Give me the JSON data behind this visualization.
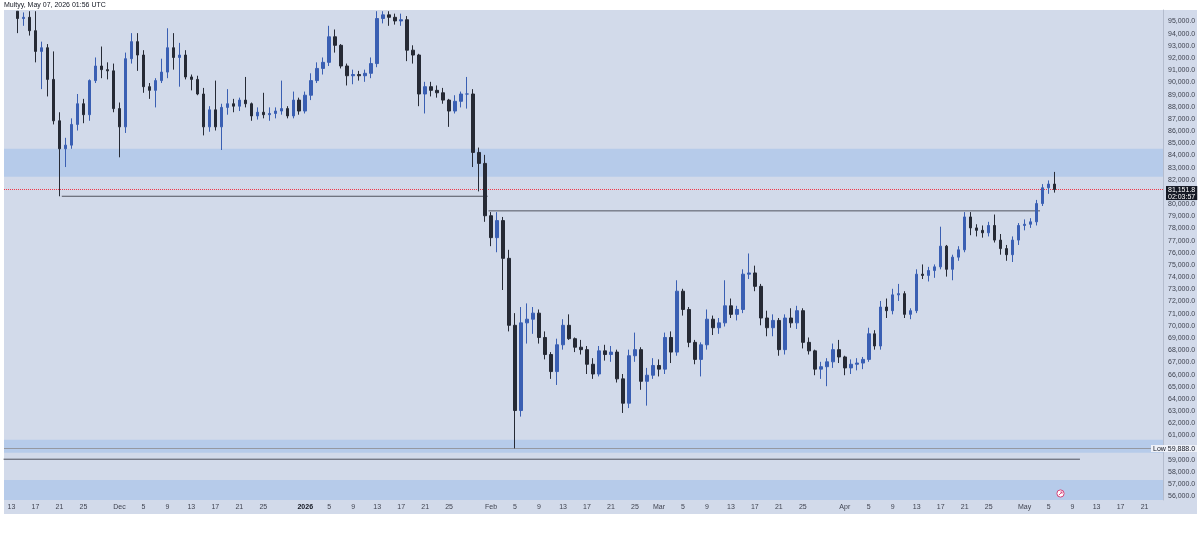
{
  "chart_data": {
    "type": "candlestick",
    "annotations": [
      "Multyy, May 07, 2026 01:56 UTC",
      "02:03:57"
    ],
    "x": [
      "2025-11-14",
      "2025-11-15",
      "2025-11-16",
      "2025-11-17",
      "2025-11-18",
      "2025-11-19",
      "2025-11-20",
      "2025-11-21",
      "2025-11-22",
      "2025-11-23",
      "2025-11-24",
      "2025-11-25",
      "2025-11-26",
      "2025-11-27",
      "2025-11-28",
      "2025-11-29",
      "2025-11-30",
      "2025-12-01",
      "2025-12-02",
      "2025-12-03",
      "2025-12-04",
      "2025-12-05",
      "2025-12-06",
      "2025-12-07",
      "2025-12-08",
      "2025-12-09",
      "2025-12-10",
      "2025-12-11",
      "2025-12-12",
      "2025-12-13",
      "2025-12-14",
      "2025-12-15",
      "2025-12-16",
      "2025-12-17",
      "2025-12-18",
      "2025-12-19",
      "2025-12-20",
      "2025-12-21",
      "2025-12-22",
      "2025-12-23",
      "2025-12-24",
      "2025-12-25",
      "2025-12-26",
      "2025-12-27",
      "2025-12-28",
      "2025-12-29",
      "2025-12-30",
      "2025-12-31",
      "2026-01-01",
      "2026-01-02",
      "2026-01-03",
      "2026-01-04",
      "2026-01-05",
      "2026-01-06",
      "2026-01-07",
      "2026-01-08",
      "2026-01-09",
      "2026-01-10",
      "2026-01-11",
      "2026-01-12",
      "2026-01-13",
      "2026-01-14",
      "2026-01-15",
      "2026-01-16",
      "2026-01-17",
      "2026-01-18",
      "2026-01-19",
      "2026-01-20",
      "2026-01-21",
      "2026-01-22",
      "2026-01-23",
      "2026-01-24",
      "2026-01-25",
      "2026-01-26",
      "2026-01-27",
      "2026-01-28",
      "2026-01-29",
      "2026-01-30",
      "2026-01-31",
      "2026-02-01",
      "2026-02-02",
      "2026-02-03",
      "2026-02-04",
      "2026-02-05",
      "2026-02-06",
      "2026-02-07",
      "2026-02-08",
      "2026-02-09",
      "2026-02-10",
      "2026-02-11",
      "2026-02-12",
      "2026-02-13",
      "2026-02-14",
      "2026-02-15",
      "2026-02-16",
      "2026-02-17",
      "2026-02-18",
      "2026-02-19",
      "2026-02-20",
      "2026-02-21",
      "2026-02-22",
      "2026-02-23",
      "2026-02-24",
      "2026-02-25",
      "2026-02-26",
      "2026-02-27",
      "2026-02-28",
      "2026-03-01",
      "2026-03-02",
      "2026-03-03",
      "2026-03-04",
      "2026-03-05",
      "2026-03-06",
      "2026-03-07",
      "2026-03-08",
      "2026-03-09",
      "2026-03-10",
      "2026-03-11",
      "2026-03-12",
      "2026-03-13",
      "2026-03-14",
      "2026-03-15",
      "2026-03-16",
      "2026-03-17",
      "2026-03-18",
      "2026-03-19",
      "2026-03-20",
      "2026-03-21",
      "2026-03-22",
      "2026-03-23",
      "2026-03-24",
      "2026-03-25",
      "2026-03-26",
      "2026-03-27",
      "2026-03-28",
      "2026-03-29",
      "2026-03-30",
      "2026-03-31",
      "2026-04-01",
      "2026-04-02",
      "2026-04-03",
      "2026-04-04",
      "2026-04-05",
      "2026-04-06",
      "2026-04-07",
      "2026-04-08",
      "2026-04-09",
      "2026-04-10",
      "2026-04-11",
      "2026-04-12",
      "2026-04-13",
      "2026-04-14",
      "2026-04-15",
      "2026-04-16",
      "2026-04-17",
      "2026-04-18",
      "2026-04-19",
      "2026-04-20",
      "2026-04-21",
      "2026-04-22",
      "2026-04-23",
      "2026-04-24",
      "2026-04-25",
      "2026-04-26",
      "2026-04-27",
      "2026-04-28",
      "2026-04-29",
      "2026-04-30",
      "2026-05-01",
      "2026-05-02",
      "2026-05-03",
      "2026-05-04",
      "2026-05-05",
      "2026-05-06"
    ],
    "ohlc": [
      [
        95800,
        95800,
        94000,
        95200
      ],
      [
        95200,
        95700,
        94600,
        95300
      ],
      [
        95300,
        95800,
        93800,
        94200
      ],
      [
        94200,
        95800,
        91600,
        92500
      ],
      [
        92500,
        93300,
        89400,
        92800
      ],
      [
        92800,
        93100,
        88800,
        90200
      ],
      [
        90200,
        92500,
        86500,
        86800
      ],
      [
        86800,
        87500,
        80600,
        84500
      ],
      [
        84500,
        85400,
        83000,
        84800
      ],
      [
        84800,
        87000,
        84500,
        86500
      ],
      [
        86500,
        89000,
        86000,
        88200
      ],
      [
        88200,
        88600,
        86600,
        87300
      ],
      [
        87300,
        90200,
        86800,
        90100
      ],
      [
        90100,
        92000,
        89900,
        91300
      ],
      [
        91300,
        92900,
        90300,
        91000
      ],
      [
        91000,
        91600,
        90200,
        90900
      ],
      [
        90900,
        91500,
        87500,
        87800
      ],
      [
        87800,
        88300,
        83800,
        86300
      ],
      [
        86300,
        92400,
        85800,
        91900
      ],
      [
        91900,
        94000,
        91500,
        93300
      ],
      [
        93300,
        94000,
        90900,
        92200
      ],
      [
        92200,
        92600,
        89100,
        89600
      ],
      [
        89600,
        89900,
        88600,
        89300
      ],
      [
        89300,
        90300,
        87900,
        90100
      ],
      [
        90100,
        91900,
        89900,
        90800
      ],
      [
        90800,
        94400,
        90300,
        92800
      ],
      [
        92800,
        94000,
        91000,
        92000
      ],
      [
        92000,
        93200,
        89600,
        92200
      ],
      [
        92200,
        92600,
        90200,
        90400
      ],
      [
        90400,
        90600,
        89300,
        90200
      ],
      [
        90200,
        90500,
        88900,
        89000
      ],
      [
        89000,
        89500,
        85600,
        86300
      ],
      [
        86300,
        88000,
        85900,
        87700
      ],
      [
        87700,
        90100,
        86000,
        86300
      ],
      [
        86300,
        88200,
        84400,
        87900
      ],
      [
        87900,
        89400,
        87300,
        88200
      ],
      [
        88200,
        88600,
        87500,
        88000
      ],
      [
        88000,
        88700,
        87600,
        88500
      ],
      [
        88500,
        90400,
        87900,
        88200
      ],
      [
        88200,
        88300,
        86800,
        87200
      ],
      [
        87200,
        87900,
        86900,
        87500
      ],
      [
        87500,
        89100,
        87000,
        87300
      ],
      [
        87300,
        87900,
        86800,
        87400
      ],
      [
        87400,
        87900,
        87000,
        87600
      ],
      [
        87600,
        90100,
        87300,
        87800
      ],
      [
        87800,
        88000,
        87000,
        87200
      ],
      [
        87200,
        89200,
        87000,
        88500
      ],
      [
        88500,
        88700,
        87300,
        87600
      ],
      [
        87600,
        89200,
        87400,
        88900
      ],
      [
        88900,
        90700,
        88500,
        90100
      ],
      [
        90100,
        91600,
        89900,
        91100
      ],
      [
        91100,
        92000,
        90600,
        91600
      ],
      [
        91600,
        94600,
        91300,
        93700
      ],
      [
        93700,
        94300,
        92400,
        93000
      ],
      [
        93000,
        93100,
        91100,
        91300
      ],
      [
        91300,
        91500,
        89700,
        90500
      ],
      [
        90500,
        91000,
        89800,
        90600
      ],
      [
        90600,
        90900,
        90100,
        90500
      ],
      [
        90500,
        91000,
        90000,
        90700
      ],
      [
        90700,
        92000,
        90300,
        91500
      ],
      [
        91500,
        95800,
        91200,
        95200
      ],
      [
        95200,
        95800,
        94800,
        95500
      ],
      [
        95500,
        95800,
        94600,
        95300
      ],
      [
        95300,
        95600,
        94700,
        95000
      ],
      [
        95000,
        95600,
        94600,
        95100
      ],
      [
        95100,
        95400,
        91700,
        92600
      ],
      [
        92600,
        93000,
        91500,
        92200
      ],
      [
        92200,
        92300,
        88000,
        89000
      ],
      [
        89000,
        90000,
        87400,
        89600
      ],
      [
        89600,
        90000,
        88800,
        89300
      ],
      [
        89300,
        89700,
        88700,
        89100
      ],
      [
        89100,
        89500,
        88200,
        88500
      ],
      [
        88500,
        88600,
        86300,
        87600
      ],
      [
        87600,
        88900,
        87400,
        88400
      ],
      [
        88400,
        89200,
        87900,
        89000
      ],
      [
        89000,
        90400,
        87800,
        89000
      ],
      [
        89000,
        89400,
        83000,
        84200
      ],
      [
        84200,
        84600,
        81000,
        83300
      ],
      [
        83300,
        84000,
        78500,
        79000
      ],
      [
        79000,
        79300,
        76500,
        77200
      ],
      [
        77200,
        79300,
        76000,
        78600
      ],
      [
        78600,
        78900,
        72900,
        75500
      ],
      [
        75500,
        76200,
        69500,
        70000
      ],
      [
        70000,
        71000,
        59888,
        63000
      ],
      [
        63000,
        71500,
        62500,
        70200
      ],
      [
        70200,
        71800,
        68500,
        70500
      ],
      [
        70500,
        71500,
        69300,
        71000
      ],
      [
        71000,
        71300,
        68500,
        69000
      ],
      [
        69000,
        69500,
        67200,
        67600
      ],
      [
        67600,
        67800,
        65600,
        66200
      ],
      [
        66200,
        68900,
        65100,
        68400
      ],
      [
        68400,
        70500,
        68000,
        70000
      ],
      [
        70000,
        70900,
        68800,
        68900
      ],
      [
        68900,
        69000,
        67800,
        68200
      ],
      [
        68200,
        68800,
        67600,
        68000
      ],
      [
        68000,
        68300,
        66000,
        66800
      ],
      [
        66800,
        67300,
        65600,
        66000
      ],
      [
        66000,
        68300,
        65800,
        67900
      ],
      [
        67900,
        68400,
        67100,
        67600
      ],
      [
        67600,
        68300,
        67000,
        67800
      ],
      [
        67800,
        68000,
        65300,
        65600
      ],
      [
        65600,
        66000,
        62800,
        63600
      ],
      [
        63600,
        68000,
        63200,
        67500
      ],
      [
        67500,
        69400,
        67000,
        68000
      ],
      [
        68000,
        68200,
        64700,
        65400
      ],
      [
        65400,
        66500,
        63400,
        65900
      ],
      [
        65900,
        67300,
        65600,
        66700
      ],
      [
        66700,
        67200,
        65800,
        66400
      ],
      [
        66400,
        69400,
        66000,
        69000
      ],
      [
        69000,
        69500,
        66900,
        67800
      ],
      [
        67800,
        73700,
        67500,
        72800
      ],
      [
        72800,
        73000,
        70800,
        71300
      ],
      [
        71300,
        71500,
        68200,
        68600
      ],
      [
        68600,
        68800,
        66800,
        67200
      ],
      [
        67200,
        68600,
        65800,
        68400
      ],
      [
        68400,
        71300,
        68000,
        70500
      ],
      [
        70500,
        70800,
        69200,
        69800
      ],
      [
        69800,
        70600,
        69300,
        70200
      ],
      [
        70200,
        73700,
        69900,
        71600
      ],
      [
        71600,
        72200,
        70600,
        70900
      ],
      [
        70900,
        71600,
        70400,
        71300
      ],
      [
        71300,
        74600,
        71000,
        74200
      ],
      [
        74200,
        75900,
        73800,
        74300
      ],
      [
        74300,
        74900,
        72800,
        73200
      ],
      [
        73200,
        73400,
        70000,
        70600
      ],
      [
        70600,
        71200,
        69100,
        69800
      ],
      [
        69800,
        70900,
        69100,
        70400
      ],
      [
        70400,
        70600,
        67500,
        68000
      ],
      [
        68000,
        70900,
        67600,
        70600
      ],
      [
        70600,
        71400,
        69800,
        70200
      ],
      [
        70200,
        71600,
        69700,
        71200
      ],
      [
        71200,
        71400,
        68100,
        68600
      ],
      [
        68600,
        69000,
        67600,
        67900
      ],
      [
        67900,
        68000,
        65900,
        66400
      ],
      [
        66400,
        67000,
        65600,
        66600
      ],
      [
        66600,
        67300,
        65000,
        67000
      ],
      [
        67000,
        68500,
        66500,
        68000
      ],
      [
        68000,
        68800,
        66900,
        67400
      ],
      [
        67400,
        67500,
        65900,
        66500
      ],
      [
        66500,
        67200,
        66000,
        66800
      ],
      [
        66800,
        67300,
        66300,
        66900
      ],
      [
        66900,
        67400,
        66400,
        67200
      ],
      [
        67200,
        69800,
        67000,
        69300
      ],
      [
        69300,
        69600,
        68000,
        68300
      ],
      [
        68300,
        72000,
        68000,
        71500
      ],
      [
        71500,
        72200,
        70600,
        71200
      ],
      [
        71200,
        73000,
        70900,
        72500
      ],
      [
        72500,
        73400,
        72000,
        72600
      ],
      [
        72600,
        72800,
        70600,
        70900
      ],
      [
        70900,
        71400,
        70500,
        71200
      ],
      [
        71200,
        74600,
        71000,
        74200
      ],
      [
        74200,
        75000,
        73800,
        74100
      ],
      [
        74100,
        74800,
        73600,
        74500
      ],
      [
        74500,
        75000,
        73900,
        74800
      ],
      [
        74800,
        78100,
        74600,
        76500
      ],
      [
        76500,
        76600,
        74000,
        74600
      ],
      [
        74600,
        75800,
        73700,
        75600
      ],
      [
        75600,
        76500,
        75300,
        76200
      ],
      [
        76200,
        79300,
        76000,
        78900
      ],
      [
        78900,
        79300,
        77400,
        78000
      ],
      [
        78000,
        78300,
        77300,
        77800
      ],
      [
        77800,
        78200,
        77200,
        77600
      ],
      [
        77600,
        78500,
        77300,
        78200
      ],
      [
        78200,
        79100,
        76800,
        77000
      ],
      [
        77000,
        77500,
        75800,
        76300
      ],
      [
        76300,
        76600,
        75300,
        75800
      ],
      [
        75800,
        77300,
        75200,
        77000
      ],
      [
        77000,
        78400,
        76600,
        78200
      ],
      [
        78200,
        78700,
        77800,
        78300
      ],
      [
        78300,
        78800,
        78000,
        78500
      ],
      [
        78500,
        80300,
        78200,
        80000
      ],
      [
        80000,
        81600,
        79800,
        81300
      ],
      [
        81300,
        81900,
        80800,
        81600
      ],
      [
        81600,
        82600,
        80900,
        81151.8
      ]
    ],
    "colors": [
      "#262a35",
      "#3a5fb3",
      "#262a35",
      "#262a35",
      "#3a5fb3",
      "#262a35",
      "#262a35",
      "#262a35",
      "#3a5fb3",
      "#3a5fb3",
      "#3a5fb3",
      "#262a35",
      "#3a5fb3",
      "#3a5fb3",
      "#262a35",
      "#262a35",
      "#262a35",
      "#262a35",
      "#3a5fb3",
      "#3a5fb3",
      "#262a35",
      "#262a35",
      "#262a35",
      "#3a5fb3",
      "#3a5fb3",
      "#3a5fb3",
      "#262a35",
      "#3a5fb3",
      "#262a35",
      "#262a35",
      "#262a35",
      "#262a35",
      "#3a5fb3",
      "#262a35",
      "#3a5fb3",
      "#3a5fb3",
      "#262a35",
      "#3a5fb3",
      "#262a35",
      "#262a35",
      "#3a5fb3",
      "#262a35",
      "#3a5fb3",
      "#3a5fb3",
      "#3a5fb3",
      "#262a35",
      "#3a5fb3",
      "#262a35",
      "#3a5fb3",
      "#3a5fb3",
      "#3a5fb3",
      "#3a5fb3",
      "#3a5fb3",
      "#262a35",
      "#262a35",
      "#262a35",
      "#3a5fb3",
      "#262a35",
      "#3a5fb3",
      "#3a5fb3",
      "#3a5fb3",
      "#3a5fb3",
      "#262a35",
      "#262a35",
      "#3a5fb3",
      "#262a35",
      "#262a35",
      "#262a35",
      "#3a5fb3",
      "#262a35",
      "#262a35",
      "#262a35",
      "#262a35",
      "#3a5fb3",
      "#3a5fb3",
      "#3a5fb3",
      "#262a35",
      "#262a35",
      "#262a35",
      "#262a35",
      "#3a5fb3",
      "#262a35",
      "#262a35",
      "#262a35",
      "#3a5fb3",
      "#3a5fb3",
      "#3a5fb3",
      "#262a35",
      "#262a35",
      "#262a35",
      "#3a5fb3",
      "#3a5fb3",
      "#262a35",
      "#262a35",
      "#262a35",
      "#262a35",
      "#262a35",
      "#3a5fb3",
      "#262a35",
      "#3a5fb3",
      "#262a35",
      "#262a35",
      "#3a5fb3",
      "#3a5fb3",
      "#262a35",
      "#3a5fb3",
      "#3a5fb3",
      "#262a35",
      "#3a5fb3",
      "#262a35",
      "#3a5fb3",
      "#262a35",
      "#262a35",
      "#262a35",
      "#3a5fb3",
      "#3a5fb3",
      "#262a35",
      "#3a5fb3",
      "#3a5fb3",
      "#262a35",
      "#3a5fb3",
      "#3a5fb3",
      "#3a5fb3",
      "#262a35",
      "#262a35",
      "#262a35",
      "#3a5fb3",
      "#262a35",
      "#3a5fb3",
      "#262a35",
      "#3a5fb3",
      "#262a35",
      "#262a35",
      "#262a35",
      "#3a5fb3",
      "#3a5fb3",
      "#3a5fb3",
      "#262a35",
      "#262a35",
      "#3a5fb3",
      "#3a5fb3",
      "#3a5fb3",
      "#3a5fb3",
      "#262a35",
      "#3a5fb3",
      "#262a35",
      "#3a5fb3",
      "#3a5fb3",
      "#262a35",
      "#3a5fb3",
      "#3a5fb3",
      "#262a35",
      "#3a5fb3",
      "#3a5fb3",
      "#3a5fb3",
      "#262a35",
      "#3a5fb3",
      "#3a5fb3",
      "#3a5fb3",
      "#262a35",
      "#262a35",
      "#262a35",
      "#3a5fb3",
      "#262a35",
      "#262a35",
      "#262a35",
      "#3a5fb3",
      "#3a5fb3",
      "#3a5fb3",
      "#3a5fb3",
      "#3a5fb3",
      "#3a5fb3",
      "#3a5fb3",
      "#262a35"
    ],
    "series": [
      {
        "type": "line",
        "x": [
          "2025-11-21T11:00",
          "2026-01-31T09:00"
        ],
        "values": [
          80600,
          80600
        ],
        "color": "#50535e"
      },
      {
        "type": "line",
        "x": [
          "2026-01-31T15:00",
          "2026-05-03T12:00"
        ],
        "values": [
          79400,
          79400
        ],
        "color": "#50535e"
      },
      {
        "type": "line",
        "x": [
          "2025-11-11T18:00",
          "2026-05-10T04:00"
        ],
        "values": [
          59000,
          59000
        ],
        "color": "#50535e"
      }
    ],
    "bands": [
      {
        "axis": "y",
        "from": 82200,
        "to": 84500,
        "color": "#b6cbea"
      },
      {
        "axis": "y",
        "from": 59540,
        "to": 60600,
        "color": "#b6cbea"
      },
      {
        "axis": "y",
        "from": 55650,
        "to": 57300,
        "color": "#b6cbea"
      }
    ],
    "ref_lines": [
      {
        "axis": "y",
        "value": 81151.8,
        "label": "81,151.8",
        "color": "#f23645",
        "line_style": "dotted"
      },
      {
        "axis": "y",
        "value": 59888,
        "label": "Low 59,888.0",
        "color": "#9598a1"
      }
    ],
    "xlim": [
      "2025-11-11T18:00",
      "2026-05-24T02:00"
    ],
    "xticks": [
      {
        "value": "2025-11-13",
        "label": "13"
      },
      {
        "value": "2025-11-17",
        "label": "17"
      },
      {
        "value": "2025-11-21",
        "label": "21"
      },
      {
        "value": "2025-11-25",
        "label": "25"
      },
      {
        "value": "2025-12-01",
        "label": "Dec"
      },
      {
        "value": "2025-12-05",
        "label": "5"
      },
      {
        "value": "2025-12-09",
        "label": "9"
      },
      {
        "value": "2025-12-13",
        "label": "13"
      },
      {
        "value": "2025-12-17",
        "label": "17"
      },
      {
        "value": "2025-12-21",
        "label": "21"
      },
      {
        "value": "2025-12-25",
        "label": "25"
      },
      {
        "value": "2026-01-01",
        "label": "2026"
      },
      {
        "value": "2026-01-05",
        "label": "5"
      },
      {
        "value": "2026-01-09",
        "label": "9"
      },
      {
        "value": "2026-01-13",
        "label": "13"
      },
      {
        "value": "2026-01-17",
        "label": "17"
      },
      {
        "value": "2026-01-21",
        "label": "21"
      },
      {
        "value": "2026-01-25",
        "label": "25"
      },
      {
        "value": "2026-02-01",
        "label": "Feb"
      },
      {
        "value": "2026-02-05",
        "label": "5"
      },
      {
        "value": "2026-02-09",
        "label": "9"
      },
      {
        "value": "2026-02-13",
        "label": "13"
      },
      {
        "value": "2026-02-17",
        "label": "17"
      },
      {
        "value": "2026-02-21",
        "label": "21"
      },
      {
        "value": "2026-02-25",
        "label": "25"
      },
      {
        "value": "2026-03-01",
        "label": "Mar"
      },
      {
        "value": "2026-03-05",
        "label": "5"
      },
      {
        "value": "2026-03-09",
        "label": "9"
      },
      {
        "value": "2026-03-13",
        "label": "13"
      },
      {
        "value": "2026-03-17",
        "label": "17"
      },
      {
        "value": "2026-03-21",
        "label": "21"
      },
      {
        "value": "2026-03-25",
        "label": "25"
      },
      {
        "value": "2026-04-01",
        "label": "Apr"
      },
      {
        "value": "2026-04-05",
        "label": "5"
      },
      {
        "value": "2026-04-09",
        "label": "9"
      },
      {
        "value": "2026-04-13",
        "label": "13"
      },
      {
        "value": "2026-04-17",
        "label": "17"
      },
      {
        "value": "2026-04-21",
        "label": "21"
      },
      {
        "value": "2026-04-25",
        "label": "25"
      },
      {
        "value": "2026-05-01",
        "label": "May"
      },
      {
        "value": "2026-05-05",
        "label": "5"
      },
      {
        "value": "2026-05-09",
        "label": "9"
      },
      {
        "value": "2026-05-13",
        "label": "13"
      },
      {
        "value": "2026-05-17",
        "label": "17"
      },
      {
        "value": "2026-05-21",
        "label": "21"
      }
    ],
    "ylim": [
      55650,
      95900
    ],
    "yticks": [
      {
        "value": 56000,
        "label": "56,000.0"
      },
      {
        "value": 57000,
        "label": "57,000.0"
      },
      {
        "value": 58000,
        "label": "58,000.0"
      },
      {
        "value": 59000,
        "label": "59,000.0"
      },
      {
        "value": 60000,
        "label": null
      },
      {
        "value": 61000,
        "label": "61,000.0"
      },
      {
        "value": 62000,
        "label": "62,000.0"
      },
      {
        "value": 63000,
        "label": "63,000.0"
      },
      {
        "value": 64000,
        "label": "64,000.0"
      },
      {
        "value": 65000,
        "label": "65,000.0"
      },
      {
        "value": 66000,
        "label": "66,000.0"
      },
      {
        "value": 67000,
        "label": "67,000.0"
      },
      {
        "value": 68000,
        "label": "68,000.0"
      },
      {
        "value": 69000,
        "label": "69,000.0"
      },
      {
        "value": 70000,
        "label": "70,000.0"
      },
      {
        "value": 71000,
        "label": "71,000.0"
      },
      {
        "value": 72000,
        "label": "72,000.0"
      },
      {
        "value": 73000,
        "label": "73,000.0"
      },
      {
        "value": 74000,
        "label": "74,000.0"
      },
      {
        "value": 75000,
        "label": "75,000.0"
      },
      {
        "value": 76000,
        "label": "76,000.0"
      },
      {
        "value": 77000,
        "label": "77,000.0"
      },
      {
        "value": 78000,
        "label": "78,000.0"
      },
      {
        "value": 79000,
        "label": "79,000.0"
      },
      {
        "value": 80000,
        "label": "80,000.0"
      },
      {
        "value": 81000,
        "label": null
      },
      {
        "value": 82000,
        "label": "82,000.0"
      },
      {
        "value": 83000,
        "label": "83,000.0"
      },
      {
        "value": 84000,
        "label": "84,000.0"
      },
      {
        "value": 85000,
        "label": "85,000.0"
      },
      {
        "value": 86000,
        "label": "86,000.0"
      },
      {
        "value": 87000,
        "label": "87,000.0"
      },
      {
        "value": 88000,
        "label": "88,000.0"
      },
      {
        "value": 89000,
        "label": "89,000.0"
      },
      {
        "value": 90000,
        "label": "90,000.0"
      },
      {
        "value": 91000,
        "label": "91,000.0"
      },
      {
        "value": 92000,
        "label": "92,000.0"
      },
      {
        "value": 93000,
        "label": "93,000.0"
      },
      {
        "value": 94000,
        "label": "94,000.0"
      },
      {
        "value": 95000,
        "label": "95,000.0"
      }
    ]
  }
}
